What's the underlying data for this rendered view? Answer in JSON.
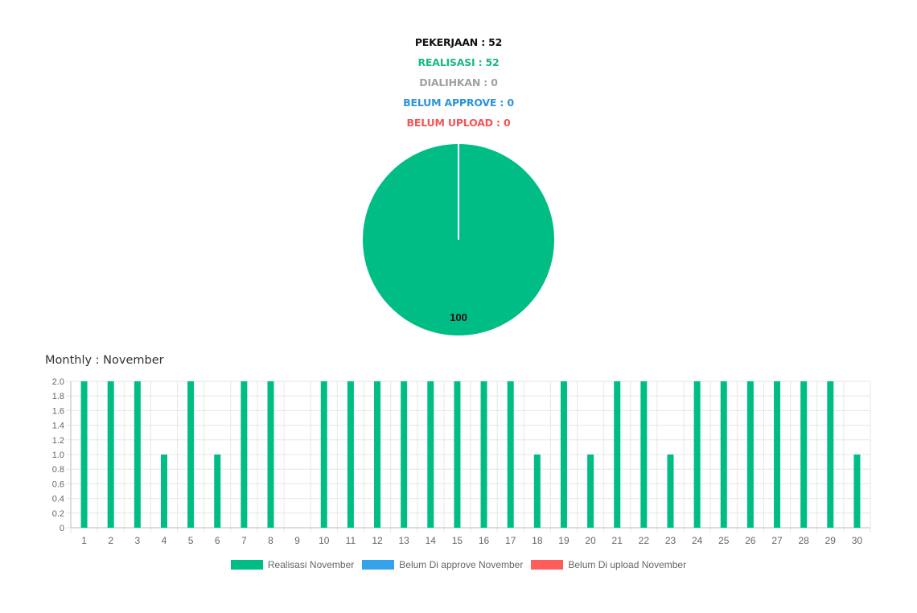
{
  "summary": {
    "pekerjaan": {
      "text": "PEKERJAAN : 52",
      "color": "#111111"
    },
    "realisasi": {
      "text": "REALISASI : 52",
      "color": "#17b883"
    },
    "dialihkan": {
      "text": "DIALIHKAN : 0",
      "color": "#a0a0a0"
    },
    "belum_approve": {
      "text": "BELUM APPROVE : 0",
      "color": "#2b93d9"
    },
    "belum_upload": {
      "text": "BELUM UPLOAD : 0",
      "color": "#f25555"
    }
  },
  "monthly_title": "Monthly : November",
  "colors": {
    "realisasi": "#00bd86",
    "approve": "#36a2eb",
    "upload": "#ff5c5c",
    "grid": "#e6e6e6",
    "tick": "#666666"
  },
  "chart_data": [
    {
      "type": "pie",
      "slices": [
        {
          "label": "Realisasi",
          "value": 100,
          "color": "#00bd86"
        },
        {
          "label": "Dialihkan",
          "value": 0
        },
        {
          "label": "Belum approve",
          "value": 0
        },
        {
          "label": "Belum upload",
          "value": 0
        }
      ],
      "data_label": "100"
    },
    {
      "type": "bar",
      "categories": [
        "1",
        "2",
        "3",
        "4",
        "5",
        "6",
        "7",
        "8",
        "9",
        "10",
        "11",
        "12",
        "13",
        "14",
        "15",
        "16",
        "17",
        "18",
        "19",
        "20",
        "21",
        "22",
        "23",
        "24",
        "25",
        "26",
        "27",
        "28",
        "29",
        "30"
      ],
      "series": [
        {
          "name": "Realisasi November",
          "color": "#00bd86",
          "values": [
            2,
            2,
            2,
            1,
            2,
            1,
            2,
            2,
            0,
            2,
            2,
            2,
            2,
            2,
            2,
            2,
            2,
            1,
            2,
            1,
            2,
            2,
            1,
            2,
            2,
            2,
            2,
            2,
            2,
            1
          ]
        },
        {
          "name": "Belum Di approve November",
          "color": "#36a2eb",
          "values": [
            0,
            0,
            0,
            0,
            0,
            0,
            0,
            0,
            0,
            0,
            0,
            0,
            0,
            0,
            0,
            0,
            0,
            0,
            0,
            0,
            0,
            0,
            0,
            0,
            0,
            0,
            0,
            0,
            0,
            0
          ]
        },
        {
          "name": "Belum Di upload November",
          "color": "#ff5c5c",
          "values": [
            0,
            0,
            0,
            0,
            0,
            0,
            0,
            0,
            0,
            0,
            0,
            0,
            0,
            0,
            0,
            0,
            0,
            0,
            0,
            0,
            0,
            0,
            0,
            0,
            0,
            0,
            0,
            0,
            0,
            0
          ]
        }
      ],
      "yticks": [
        "0",
        "0.2",
        "0.4",
        "0.6",
        "0.8",
        "1.0",
        "1.2",
        "1.4",
        "1.6",
        "1.8",
        "2.0"
      ],
      "ylim": [
        0,
        2
      ],
      "grid": true,
      "legend_position": "bottom"
    }
  ]
}
